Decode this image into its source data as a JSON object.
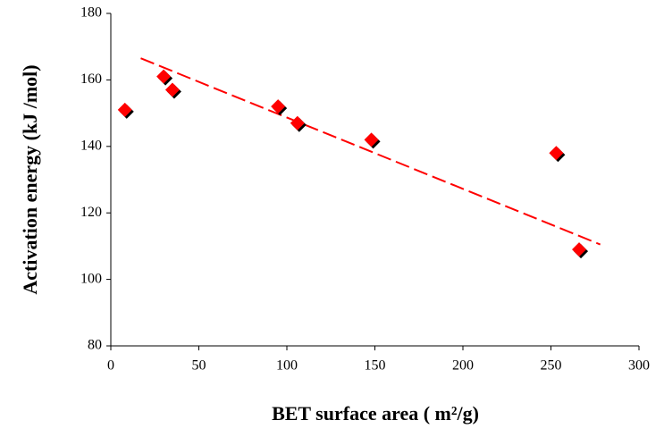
{
  "chart_data": {
    "type": "scatter",
    "xlabel": "BET surface area ( m²/g)",
    "ylabel": "Activation energy (kJ /mol)",
    "x": [
      8,
      30,
      35,
      95,
      106,
      148,
      253,
      266
    ],
    "values": [
      151,
      161,
      157,
      152,
      147,
      142,
      138,
      109
    ],
    "color": "#ff0000",
    "trendline": {
      "x": [
        17,
        278
      ],
      "values": [
        166.5,
        110.5
      ],
      "color": "#ff0000"
    },
    "xlim": [
      0,
      300
    ],
    "xticks": [
      0,
      50,
      100,
      150,
      200,
      250,
      300
    ],
    "ylim": [
      80,
      180
    ],
    "yticks": [
      80,
      100,
      120,
      140,
      160,
      180
    ]
  }
}
